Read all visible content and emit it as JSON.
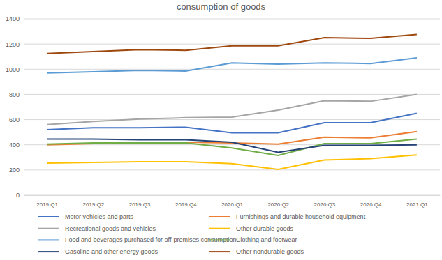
{
  "chart_data": {
    "type": "line",
    "title": "consumption of goods",
    "categories": [
      "2019 Q1",
      "2019 Q2",
      "2019 Q3",
      "2019 Q4",
      "2020 Q1",
      "2020 Q2",
      "2020 Q3",
      "2020 Q4",
      "2021 Q1"
    ],
    "series": [
      {
        "name": "Motor vehicles and parts",
        "color": "#4472c4",
        "values": [
          520,
          535,
          535,
          540,
          495,
          495,
          575,
          575,
          650
        ]
      },
      {
        "name": "Furnishings and durable household equipment",
        "color": "#ed7d31",
        "values": [
          400,
          410,
          415,
          420,
          415,
          405,
          460,
          455,
          505
        ]
      },
      {
        "name": "Recreational goods and vehicles",
        "color": "#a5a5a5",
        "values": [
          560,
          585,
          605,
          615,
          620,
          675,
          750,
          745,
          800
        ]
      },
      {
        "name": "Other durable goods",
        "color": "#ffc000",
        "values": [
          255,
          260,
          265,
          265,
          250,
          205,
          280,
          290,
          320
        ]
      },
      {
        "name": "Food and beverages purchased for off-premises consumption",
        "color": "#5b9bd5",
        "values": [
          970,
          980,
          990,
          985,
          1050,
          1040,
          1050,
          1045,
          1090
        ]
      },
      {
        "name": "Clothing and footwear",
        "color": "#70ad47",
        "values": [
          405,
          415,
          415,
          415,
          375,
          315,
          410,
          410,
          445
        ]
      },
      {
        "name": "Gasoline and other energy goods",
        "color": "#264478",
        "values": [
          445,
          445,
          440,
          440,
          420,
          340,
          395,
          395,
          400
        ]
      },
      {
        "name": "Other nondurable goods",
        "color": "#9e480e",
        "values": [
          1125,
          1140,
          1155,
          1150,
          1185,
          1185,
          1250,
          1245,
          1275
        ]
      }
    ],
    "ylim": [
      0,
      1400
    ],
    "yticks": [
      0,
      200,
      400,
      600,
      800,
      1000,
      1200,
      1400
    ],
    "grid": true,
    "legend": "bottom"
  }
}
